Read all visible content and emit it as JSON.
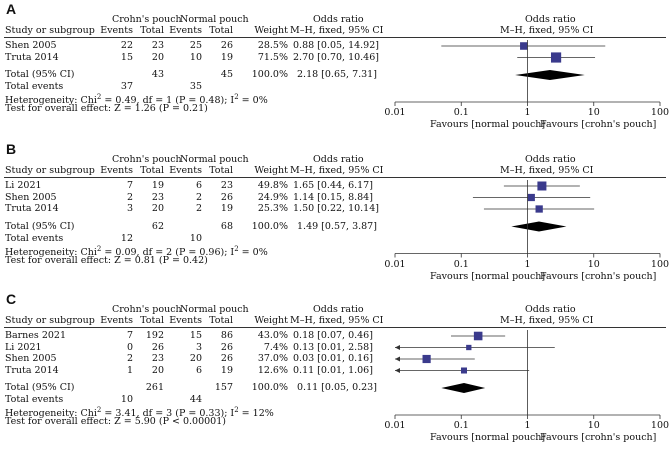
{
  "chart_data": [
    {
      "type": "forest",
      "panel_label": "A",
      "headers": {
        "study": "Study or subgroup",
        "group1": "Crohn's pouch",
        "group2": "Normal pouch",
        "events": "Events",
        "total": "Total",
        "weight": "Weight",
        "or_title": "Odds ratio",
        "or_method": "M–H, fixed, 95% CI"
      },
      "studies": [
        {
          "name": "Shen 2005",
          "e1": "22",
          "t1": "23",
          "e2": "25",
          "t2": "26",
          "weight": "28.5%",
          "ci_text": "0.88 [0.05, 14.92]",
          "or": 0.88,
          "lo": 0.05,
          "hi": 14.92,
          "w": 28.5,
          "arrow_left": false,
          "arrow_right": false
        },
        {
          "name": "Truta 2014",
          "e1": "15",
          "t1": "20",
          "e2": "10",
          "t2": "19",
          "weight": "71.5%",
          "ci_text": "2.70 [0.70, 10.46]",
          "or": 2.7,
          "lo": 0.7,
          "hi": 10.46,
          "w": 71.5,
          "arrow_left": false,
          "arrow_right": false
        }
      ],
      "total": {
        "label": "Total (95% CI)",
        "t1": "43",
        "t2": "45",
        "weight": "100.0%",
        "ci_text": "2.18 [0.65, 7.31]",
        "or": 2.18,
        "lo": 0.65,
        "hi": 7.31
      },
      "total_events": {
        "label": "Total events",
        "e1": "37",
        "e2": "35"
      },
      "heterogeneity": {
        "prefix": "Heterogeneity: Chi",
        "sup1": "2",
        "mid": " = 0.49, df = 1 (P = 0.48); I",
        "sup2": "2",
        "suffix": " = 0%"
      },
      "overall": "Test for overall effect: Z = 1.26 (P = 0.21)",
      "axis": {
        "scale": "log",
        "min": 0.01,
        "max": 100,
        "ticks": [
          0.01,
          0.1,
          1,
          10,
          100
        ],
        "tick_labels": [
          "0.01",
          "0.1",
          "1",
          "10",
          "100"
        ],
        "favours_left": "Favours [normal pouch]",
        "favours_right": "Favours [crohn's pouch]"
      }
    },
    {
      "type": "forest",
      "panel_label": "B",
      "headers": {
        "study": "Study or subgroup",
        "group1": "Crohn's pouch",
        "group2": "Normal pouch",
        "events": "Events",
        "total": "Total",
        "weight": "Weight",
        "or_title": "Odds ratio",
        "or_method": "M–H, fixed, 95% CI"
      },
      "studies": [
        {
          "name": "Li 2021",
          "e1": "7",
          "t1": "19",
          "e2": "6",
          "t2": "23",
          "weight": "49.8%",
          "ci_text": "1.65 [0.44, 6.17]",
          "or": 1.65,
          "lo": 0.44,
          "hi": 6.17,
          "w": 49.8,
          "arrow_left": false,
          "arrow_right": false
        },
        {
          "name": "Shen 2005",
          "e1": "2",
          "t1": "23",
          "e2": "2",
          "t2": "26",
          "weight": "24.9%",
          "ci_text": "1.14 [0.15, 8.84]",
          "or": 1.14,
          "lo": 0.15,
          "hi": 8.84,
          "w": 24.9,
          "arrow_left": false,
          "arrow_right": false
        },
        {
          "name": "Truta 2014",
          "e1": "3",
          "t1": "20",
          "e2": "2",
          "t2": "19",
          "weight": "25.3%",
          "ci_text": "1.50 [0.22, 10.14]",
          "or": 1.5,
          "lo": 0.22,
          "hi": 10.14,
          "w": 25.3,
          "arrow_left": false,
          "arrow_right": false
        }
      ],
      "total": {
        "label": "Total (95% CI)",
        "t1": "62",
        "t2": "68",
        "weight": "100.0%",
        "ci_text": "1.49 [0.57, 3.87]",
        "or": 1.49,
        "lo": 0.57,
        "hi": 3.87
      },
      "total_events": {
        "label": "Total events",
        "e1": "12",
        "e2": "10"
      },
      "heterogeneity": {
        "prefix": "Heterogeneity: Chi",
        "sup1": "2",
        "mid": " = 0.09, df = 2 (P = 0.96); I",
        "sup2": "2",
        "suffix": " = 0%"
      },
      "overall": "Test for overall effect: Z = 0.81 (P = 0.42)",
      "axis": {
        "scale": "log",
        "min": 0.01,
        "max": 100,
        "ticks": [
          0.01,
          0.1,
          1,
          10,
          100
        ],
        "tick_labels": [
          "0.01",
          "0.1",
          "1",
          "10",
          "100"
        ],
        "favours_left": "Favours [normal pouch]",
        "favours_right": "Favours [crohn's pouch]"
      }
    },
    {
      "type": "forest",
      "panel_label": "C",
      "headers": {
        "study": "Study or subgroup",
        "group1": "Crohn's pouch",
        "group2": "Normal pouch",
        "events": "Events",
        "total": "Total",
        "weight": "Weight",
        "or_title": "Odds ratio",
        "or_method": "M–H, fixed, 95% CI"
      },
      "studies": [
        {
          "name": "Barnes 2021",
          "e1": "7",
          "t1": "192",
          "e2": "15",
          "t2": "86",
          "weight": "43.0%",
          "ci_text": "0.18 [0.07, 0.46]",
          "or": 0.18,
          "lo": 0.07,
          "hi": 0.46,
          "w": 43.0,
          "arrow_left": false,
          "arrow_right": false
        },
        {
          "name": "Li 2021",
          "e1": "0",
          "t1": "26",
          "e2": "3",
          "t2": "26",
          "weight": "7.4%",
          "ci_text": "0.13 [0.01, 2.58]",
          "or": 0.13,
          "lo": 0.01,
          "hi": 2.58,
          "w": 7.4,
          "arrow_left": true,
          "arrow_right": false
        },
        {
          "name": "Shen 2005",
          "e1": "2",
          "t1": "23",
          "e2": "20",
          "t2": "26",
          "weight": "37.0%",
          "ci_text": "0.03 [0.01, 0.16]",
          "or": 0.03,
          "lo": 0.01,
          "hi": 0.16,
          "w": 37.0,
          "arrow_left": true,
          "arrow_right": false
        },
        {
          "name": "Truta 2014",
          "e1": "1",
          "t1": "20",
          "e2": "6",
          "t2": "19",
          "weight": "12.6%",
          "ci_text": "0.11 [0.01, 1.06]",
          "or": 0.11,
          "lo": 0.01,
          "hi": 1.06,
          "w": 12.6,
          "arrow_left": true,
          "arrow_right": false
        }
      ],
      "total": {
        "label": "Total (95% CI)",
        "t1": "261",
        "t2": "157",
        "weight": "100.0%",
        "ci_text": "0.11 [0.05, 0.23]",
        "or": 0.11,
        "lo": 0.05,
        "hi": 0.23
      },
      "total_events": {
        "label": "Total events",
        "e1": "10",
        "e2": "44"
      },
      "heterogeneity": {
        "prefix": "Heterogeneity: Chi",
        "sup1": "2",
        "mid": " = 3.41, df = 3 (P = 0.33); I",
        "sup2": "2",
        "suffix": " = 12%"
      },
      "overall": "Test for overall effect: Z = 5.90 (P < 0.00001)",
      "axis": {
        "scale": "log",
        "min": 0.01,
        "max": 100,
        "ticks": [
          0.01,
          0.1,
          1,
          10,
          100
        ],
        "tick_labels": [
          "0.01",
          "0.1",
          "1",
          "10",
          "100"
        ],
        "favours_left": "Favours [normal pouch]",
        "favours_right": "Favours [crohn's pouch]"
      }
    }
  ],
  "colors": {
    "marker": "#3a3a8c",
    "line": "#333333",
    "diamond": "#000000"
  }
}
